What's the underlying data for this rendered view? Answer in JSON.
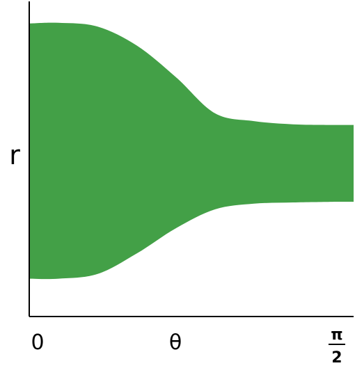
{
  "chart_data": {
    "type": "area",
    "title": "",
    "xlabel": "θ",
    "ylabel": "r",
    "x_ticks": [
      {
        "value": 0,
        "label": "0"
      },
      {
        "value": 1.5708,
        "label_num": "π",
        "label_den": "2"
      }
    ],
    "xlim": [
      0,
      1.66
    ],
    "ylim": [
      0,
      10
    ],
    "y_ticks": [],
    "grid": false,
    "legend": "none",
    "fill_color": "#43A047",
    "axis_color": "#000000",
    "series": [
      {
        "x": [
          0,
          0.15,
          0.35,
          0.55,
          0.75,
          0.95,
          1.15,
          1.35,
          1.55,
          1.66
        ],
        "upper": [
          9.3,
          9.32,
          9.2,
          8.6,
          7.6,
          6.45,
          6.2,
          6.1,
          6.08,
          6.08
        ],
        "lower": [
          1.2,
          1.2,
          1.35,
          2.0,
          2.8,
          3.4,
          3.58,
          3.62,
          3.64,
          3.64
        ]
      }
    ]
  }
}
